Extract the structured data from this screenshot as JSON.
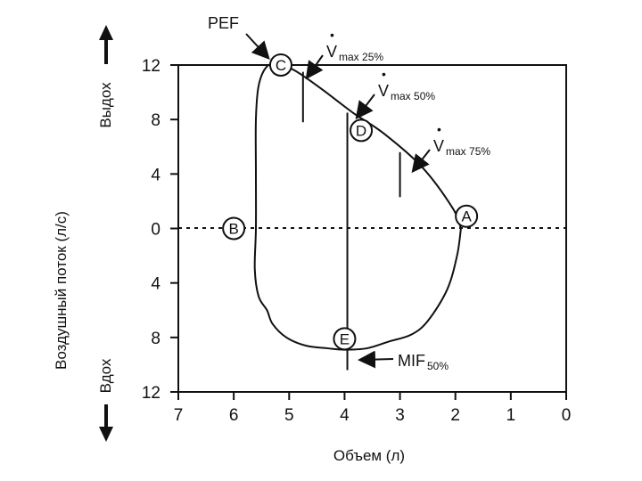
{
  "chart_data": {
    "type": "line",
    "title": "",
    "xlabel": "Объем (л)",
    "ylabel": "Воздушный поток (л/с)",
    "direction_labels": {
      "expiration": "Выдох",
      "inspiration": "Вдох"
    },
    "x_ticks": [
      "7",
      "6",
      "5",
      "4",
      "3",
      "2",
      "1",
      "0"
    ],
    "y_ticks": [
      "12",
      "8",
      "4",
      "0",
      "4",
      "8",
      "12"
    ],
    "xlim": [
      7,
      0
    ],
    "ylim": [
      -12,
      12
    ],
    "grid": false,
    "zero_line": "dotted",
    "series": [
      {
        "name": "flow-volume-loop",
        "points": [
          [
            1.9,
            0.0
          ],
          [
            2.05,
            1.5
          ],
          [
            2.6,
            4.5
          ],
          [
            3.3,
            7.0
          ],
          [
            3.85,
            8.5
          ],
          [
            4.4,
            10.2
          ],
          [
            4.9,
            11.6
          ],
          [
            5.2,
            12.0
          ],
          [
            5.4,
            11.9
          ],
          [
            5.55,
            10.5
          ],
          [
            5.6,
            8.0
          ],
          [
            5.6,
            4.0
          ],
          [
            5.6,
            0.0
          ],
          [
            5.62,
            -3.0
          ],
          [
            5.55,
            -5.0
          ],
          [
            5.4,
            -6.0
          ],
          [
            5.3,
            -7.0
          ],
          [
            5.05,
            -8.0
          ],
          [
            4.7,
            -8.6
          ],
          [
            4.3,
            -8.8
          ],
          [
            4.0,
            -8.9
          ],
          [
            3.6,
            -8.8
          ],
          [
            3.2,
            -8.3
          ],
          [
            2.8,
            -7.8
          ],
          [
            2.5,
            -6.8
          ],
          [
            2.15,
            -4.5
          ],
          [
            1.97,
            -2.0
          ],
          [
            1.9,
            0.0
          ]
        ]
      }
    ],
    "points": [
      {
        "label": "A",
        "x": 1.8,
        "y": 0.9
      },
      {
        "label": "B",
        "x": 6.0,
        "y": 0.0
      },
      {
        "label": "C",
        "x": 5.15,
        "y": 12.0
      },
      {
        "label": "D",
        "x": 3.7,
        "y": 7.2
      },
      {
        "label": "E",
        "x": 4.0,
        "y": -8.1
      }
    ],
    "markers": [
      {
        "name": "Vmax 25%",
        "x": 4.75,
        "y_from": 7.8,
        "y_to": 11.5
      },
      {
        "name": "Vmax 50%",
        "x": 3.95,
        "y_from": -10.4,
        "y_to": 8.5
      },
      {
        "name": "Vmax 75%",
        "x": 3.0,
        "y_from": 2.3,
        "y_to": 5.6
      }
    ],
    "annotations": [
      {
        "key": "pef",
        "label": "PEF",
        "target": "C"
      },
      {
        "key": "v25",
        "label": "V",
        "subscript": "max 25%",
        "target": "Vmax 25%"
      },
      {
        "key": "v50",
        "label": "V",
        "subscript": "max 50%",
        "target": "Vmax 50%"
      },
      {
        "key": "v75",
        "label": "V",
        "subscript": "max 75%",
        "target": "Vmax 75%"
      },
      {
        "key": "mif",
        "label": "MIF",
        "subscript": "50%",
        "target": "E"
      }
    ]
  }
}
